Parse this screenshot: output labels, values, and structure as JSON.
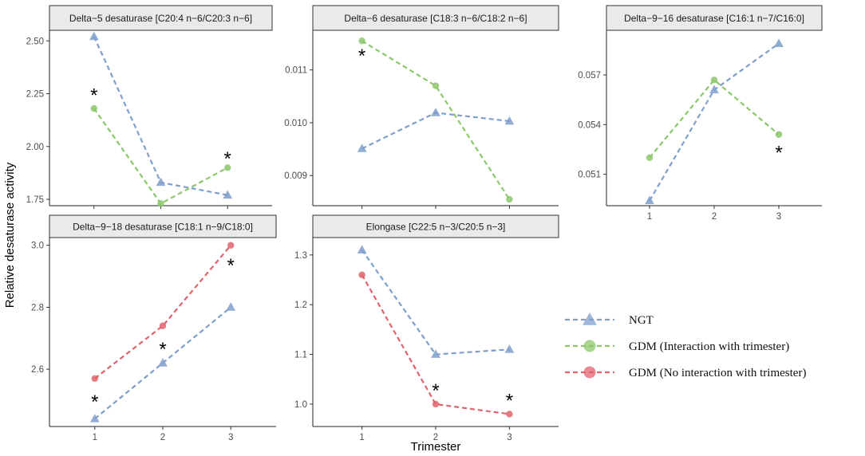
{
  "chart_data": {
    "type": "line",
    "xlabel": "Trimester",
    "ylabel": "Relative desaturase activity",
    "series_styles": [
      {
        "key": "ngt",
        "name": "NGT",
        "color": "#7f9fcc",
        "marker": "triangle"
      },
      {
        "key": "gdm_int",
        "name": "GDM (Interaction with trimester)",
        "color": "#8cc76b",
        "marker": "circle"
      },
      {
        "key": "gdm_noint",
        "name": "GDM (No interaction with trimester)",
        "color": "#e0636c",
        "marker": "circle"
      }
    ],
    "panels": [
      {
        "title": "Delta−5 desaturase [C20:4 n−6/C20:3 n−6]",
        "x": [
          1,
          2,
          3
        ],
        "ylim": [
          1.72,
          2.55
        ],
        "yticks": [
          "1.75",
          "2.00",
          "2.25",
          "2.50"
        ],
        "show_xticks": false,
        "series": [
          {
            "key": "ngt",
            "values": [
              2.52,
              1.83,
              1.77
            ]
          },
          {
            "key": "gdm_int",
            "values": [
              2.18,
              1.73,
              1.9
            ]
          }
        ],
        "stars": [
          {
            "x": 1,
            "y": 2.25,
            "text": "*"
          },
          {
            "x": 3,
            "y": 1.95,
            "text": "*"
          }
        ]
      },
      {
        "title": "Delta−6 desaturase [C18:3 n−6/C18:2 n−6]",
        "x": [
          1,
          2,
          3
        ],
        "ylim": [
          0.00843,
          0.01175
        ],
        "yticks": [
          "0.009",
          "0.010",
          "0.011"
        ],
        "show_xticks": false,
        "series": [
          {
            "key": "ngt",
            "values": [
              0.00951,
              0.01019,
              0.01003
            ]
          },
          {
            "key": "gdm_int",
            "values": [
              0.01155,
              0.0107,
              0.00855
            ]
          }
        ],
        "stars": [
          {
            "x": 1,
            "y": 0.0113,
            "text": "*"
          }
        ]
      },
      {
        "title": "Delta−9−16 desaturase [C16:1 n−7/C16:0]",
        "x": [
          1,
          2,
          3
        ],
        "ylim": [
          0.0491,
          0.0597
        ],
        "yticks": [
          "0.051",
          "0.054",
          "0.057"
        ],
        "show_xticks": true,
        "xticks": [
          "1",
          "2",
          "3"
        ],
        "series": [
          {
            "key": "ngt",
            "values": [
              0.0494,
              0.0561,
              0.0589
            ]
          },
          {
            "key": "gdm_int",
            "values": [
              0.052,
              0.0567,
              0.0534
            ]
          }
        ],
        "stars": [
          {
            "x": 3,
            "y": 0.0524,
            "text": "*"
          }
        ]
      },
      {
        "title": "Delta−9−18 desaturase [C18:1 n−9/C18:0]",
        "x": [
          1,
          2,
          3
        ],
        "ylim": [
          2.415,
          3.025
        ],
        "yticks": [
          "2.6",
          "2.8",
          "3.0"
        ],
        "show_xticks": true,
        "xticks": [
          "1",
          "2",
          "3"
        ],
        "series": [
          {
            "key": "ngt",
            "values": [
              2.44,
              2.62,
              2.8
            ]
          },
          {
            "key": "gdm_noint",
            "values": [
              2.57,
              2.74,
              3.0
            ]
          }
        ],
        "stars": [
          {
            "x": 1,
            "y": 2.5,
            "text": "*"
          },
          {
            "x": 2,
            "y": 2.67,
            "text": "*"
          },
          {
            "x": 3,
            "y": 2.94,
            "text": "*"
          }
        ]
      },
      {
        "title": "Elongase [C22:5 n−3/C20:5 n−3]",
        "x": [
          1,
          2,
          3
        ],
        "ylim": [
          0.955,
          1.335
        ],
        "yticks": [
          "1.0",
          "1.1",
          "1.2",
          "1.3"
        ],
        "show_xticks": true,
        "xticks": [
          "1",
          "2",
          "3"
        ],
        "series": [
          {
            "key": "ngt",
            "values": [
              1.31,
              1.1,
              1.11
            ]
          },
          {
            "key": "gdm_noint",
            "values": [
              1.26,
              1.0,
              0.98
            ]
          }
        ],
        "stars": [
          {
            "x": 2,
            "y": 1.03,
            "text": "*"
          },
          {
            "x": 3,
            "y": 1.01,
            "text": "*"
          }
        ]
      }
    ],
    "legend": {
      "position": "right",
      "entries": [
        "NGT",
        "GDM (Interaction with trimester)",
        "GDM (No interaction with trimester)"
      ]
    }
  }
}
